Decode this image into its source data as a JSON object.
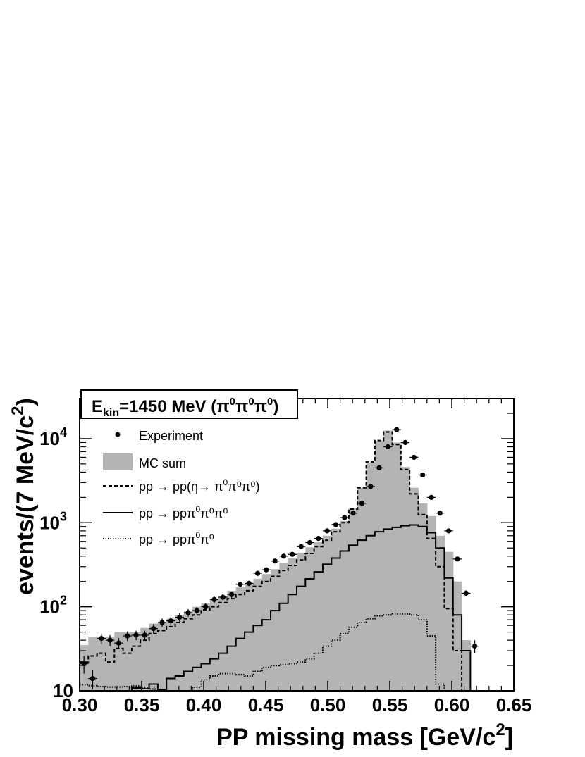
{
  "chart_data": {
    "type": "histogram",
    "title": "E_kin=1450 MeV (π⁰π⁰π⁰)",
    "title_parts": {
      "E": "E",
      "sub": "kin",
      "text": "=1450 MeV (",
      "pi": "π",
      "zero": "0",
      "close": ")"
    },
    "xlabel": "PP missing mass [GeV/c²]",
    "xlabel_parts": {
      "main": "PP missing mass [GeV/c",
      "sup": "2",
      "end": "]"
    },
    "ylabel": "events/(7 MeV/c²)",
    "ylabel_parts": {
      "main": "events/(7 MeV/c",
      "sup": "2",
      "end": ")"
    },
    "x_scale": "linear",
    "y_scale": "log",
    "xlim": [
      0.3,
      0.65
    ],
    "ylim": [
      10,
      30000
    ],
    "x_ticks": [
      "0.30",
      "0.35",
      "0.40",
      "0.45",
      "0.50",
      "0.55",
      "0.60",
      "0.65"
    ],
    "y_ticks": [
      {
        "value": 10,
        "base": "10",
        "exp": ""
      },
      {
        "value": 100,
        "base": "10",
        "exp": "2"
      },
      {
        "value": 1000,
        "base": "10",
        "exp": "3"
      },
      {
        "value": 10000,
        "base": "10",
        "exp": "4"
      }
    ],
    "bin_width": 0.007,
    "bin_edges": [
      0.3,
      0.307,
      0.314,
      0.321,
      0.328,
      0.335,
      0.342,
      0.349,
      0.356,
      0.363,
      0.37,
      0.377,
      0.384,
      0.391,
      0.398,
      0.405,
      0.412,
      0.419,
      0.426,
      0.433,
      0.44,
      0.447,
      0.454,
      0.461,
      0.468,
      0.475,
      0.482,
      0.489,
      0.496,
      0.503,
      0.51,
      0.517,
      0.524,
      0.531,
      0.538,
      0.545,
      0.552,
      0.559,
      0.566,
      0.573,
      0.58,
      0.587,
      0.594,
      0.601,
      0.608,
      0.615
    ],
    "legend": {
      "position": "top-left",
      "entries": [
        {
          "label_main": "Experiment",
          "label_sup": "",
          "style": "points"
        },
        {
          "label_main": "MC sum",
          "label_sup": "",
          "style": "gray-fill"
        },
        {
          "label_main": "pp → pp(η→ π",
          "label_sup": "0",
          "label_rest": "π⁰π⁰)",
          "style": "dashed"
        },
        {
          "label_main": "pp → ppπ",
          "label_sup": "0",
          "label_rest": "π⁰π⁰",
          "style": "solid"
        },
        {
          "label_main": "pp → ppπ",
          "label_sup": "0",
          "label_rest": "π⁰",
          "style": "dotted"
        }
      ]
    },
    "series": [
      {
        "name": "MC sum",
        "style": "gray-fill",
        "color": "#b4b4b4",
        "values": [
          35,
          44,
          44,
          44,
          50,
          50,
          50,
          56,
          63,
          66,
          72,
          80,
          88,
          100,
          110,
          122,
          135,
          155,
          170,
          190,
          215,
          245,
          280,
          330,
          380,
          440,
          510,
          590,
          700,
          850,
          1050,
          1500,
          2600,
          5200,
          9500,
          12500,
          9000,
          4600,
          2600,
          1700,
          1200,
          700,
          450,
          200,
          40
        ]
      },
      {
        "name": "pp → pp(η→ π⁰π⁰π⁰)",
        "style": "dashed",
        "color": "#000000",
        "values": [
          22,
          26,
          28,
          22,
          32,
          28,
          34,
          40,
          48,
          52,
          58,
          65,
          72,
          80,
          92,
          100,
          112,
          125,
          140,
          155,
          175,
          200,
          230,
          270,
          310,
          360,
          430,
          520,
          620,
          780,
          1000,
          1450,
          2600,
          5300,
          9500,
          12000,
          8500,
          4300,
          2200,
          1250,
          650,
          300,
          95,
          30,
          10
        ]
      },
      {
        "name": "pp → ppπ⁰π⁰π⁰",
        "style": "solid",
        "color": "#000000",
        "values": [
          10,
          10,
          10,
          10,
          10,
          10,
          10.8,
          10.6,
          12,
          10.4,
          14,
          15,
          17,
          19,
          21,
          24,
          28,
          34,
          42,
          50,
          60,
          70,
          90,
          110,
          140,
          175,
          215,
          260,
          320,
          380,
          460,
          540,
          620,
          700,
          780,
          840,
          880,
          920,
          940,
          900,
          760,
          500,
          220,
          80,
          30
        ]
      },
      {
        "name": "pp → ppπ⁰π⁰",
        "style": "dotted",
        "color": "#000000",
        "values": [
          11.8,
          11.5,
          11.2,
          11.1,
          11.1,
          11.2,
          11.4,
          11,
          10.5,
          10,
          10,
          10,
          10,
          11,
          13.5,
          15,
          16,
          16,
          15.5,
          15,
          17,
          19,
          20,
          20.5,
          21,
          22,
          24,
          28,
          34,
          40,
          48,
          57,
          65,
          72,
          78,
          80,
          82,
          82,
          80,
          70,
          45,
          12,
          10,
          10,
          10
        ]
      }
    ],
    "experiment": {
      "name": "Experiment",
      "x": [
        0.3035,
        0.3105,
        0.3175,
        0.3245,
        0.3315,
        0.3385,
        0.3455,
        0.3525,
        0.3595,
        0.3665,
        0.3735,
        0.3805,
        0.3875,
        0.3945,
        0.4015,
        0.4085,
        0.4155,
        0.4225,
        0.4295,
        0.4365,
        0.4435,
        0.4505,
        0.4575,
        0.4645,
        0.4715,
        0.4785,
        0.4855,
        0.4925,
        0.4995,
        0.5065,
        0.5135,
        0.5205,
        0.5275,
        0.5345,
        0.5415,
        0.5485,
        0.5555,
        0.5625,
        0.5695,
        0.5765,
        0.5835,
        0.5905,
        0.5975,
        0.6045,
        0.6115
      ],
      "y": [
        21,
        14,
        42,
        40,
        37,
        45,
        46,
        46,
        55,
        65,
        68,
        75,
        85,
        90,
        100,
        122,
        130,
        140,
        185,
        190,
        250,
        275,
        350,
        400,
        420,
        520,
        580,
        650,
        800,
        950,
        1150,
        1300,
        1700,
        2700,
        4500,
        8000,
        12800,
        9000,
        6000,
        3700,
        2000,
        1300,
        800,
        370,
        145
      ],
      "yerr": [
        5,
        3.5,
        6,
        6,
        5.5,
        6,
        6,
        6,
        7,
        7.5,
        8,
        8.5,
        9,
        9.5,
        10,
        11,
        11,
        12,
        14,
        14,
        16,
        17,
        19,
        20,
        21,
        23,
        24,
        26,
        28,
        31,
        34,
        36,
        41,
        52,
        67,
        90,
        113,
        95,
        77,
        61,
        45,
        36,
        28,
        19,
        12
      ]
    },
    "extra_points": [
      {
        "x": 0.6185,
        "y": 34,
        "yerr": 6
      }
    ],
    "colors": {
      "mc_fill": "#b4b4b4",
      "ink": "#000000",
      "background": "#ffffff"
    }
  }
}
